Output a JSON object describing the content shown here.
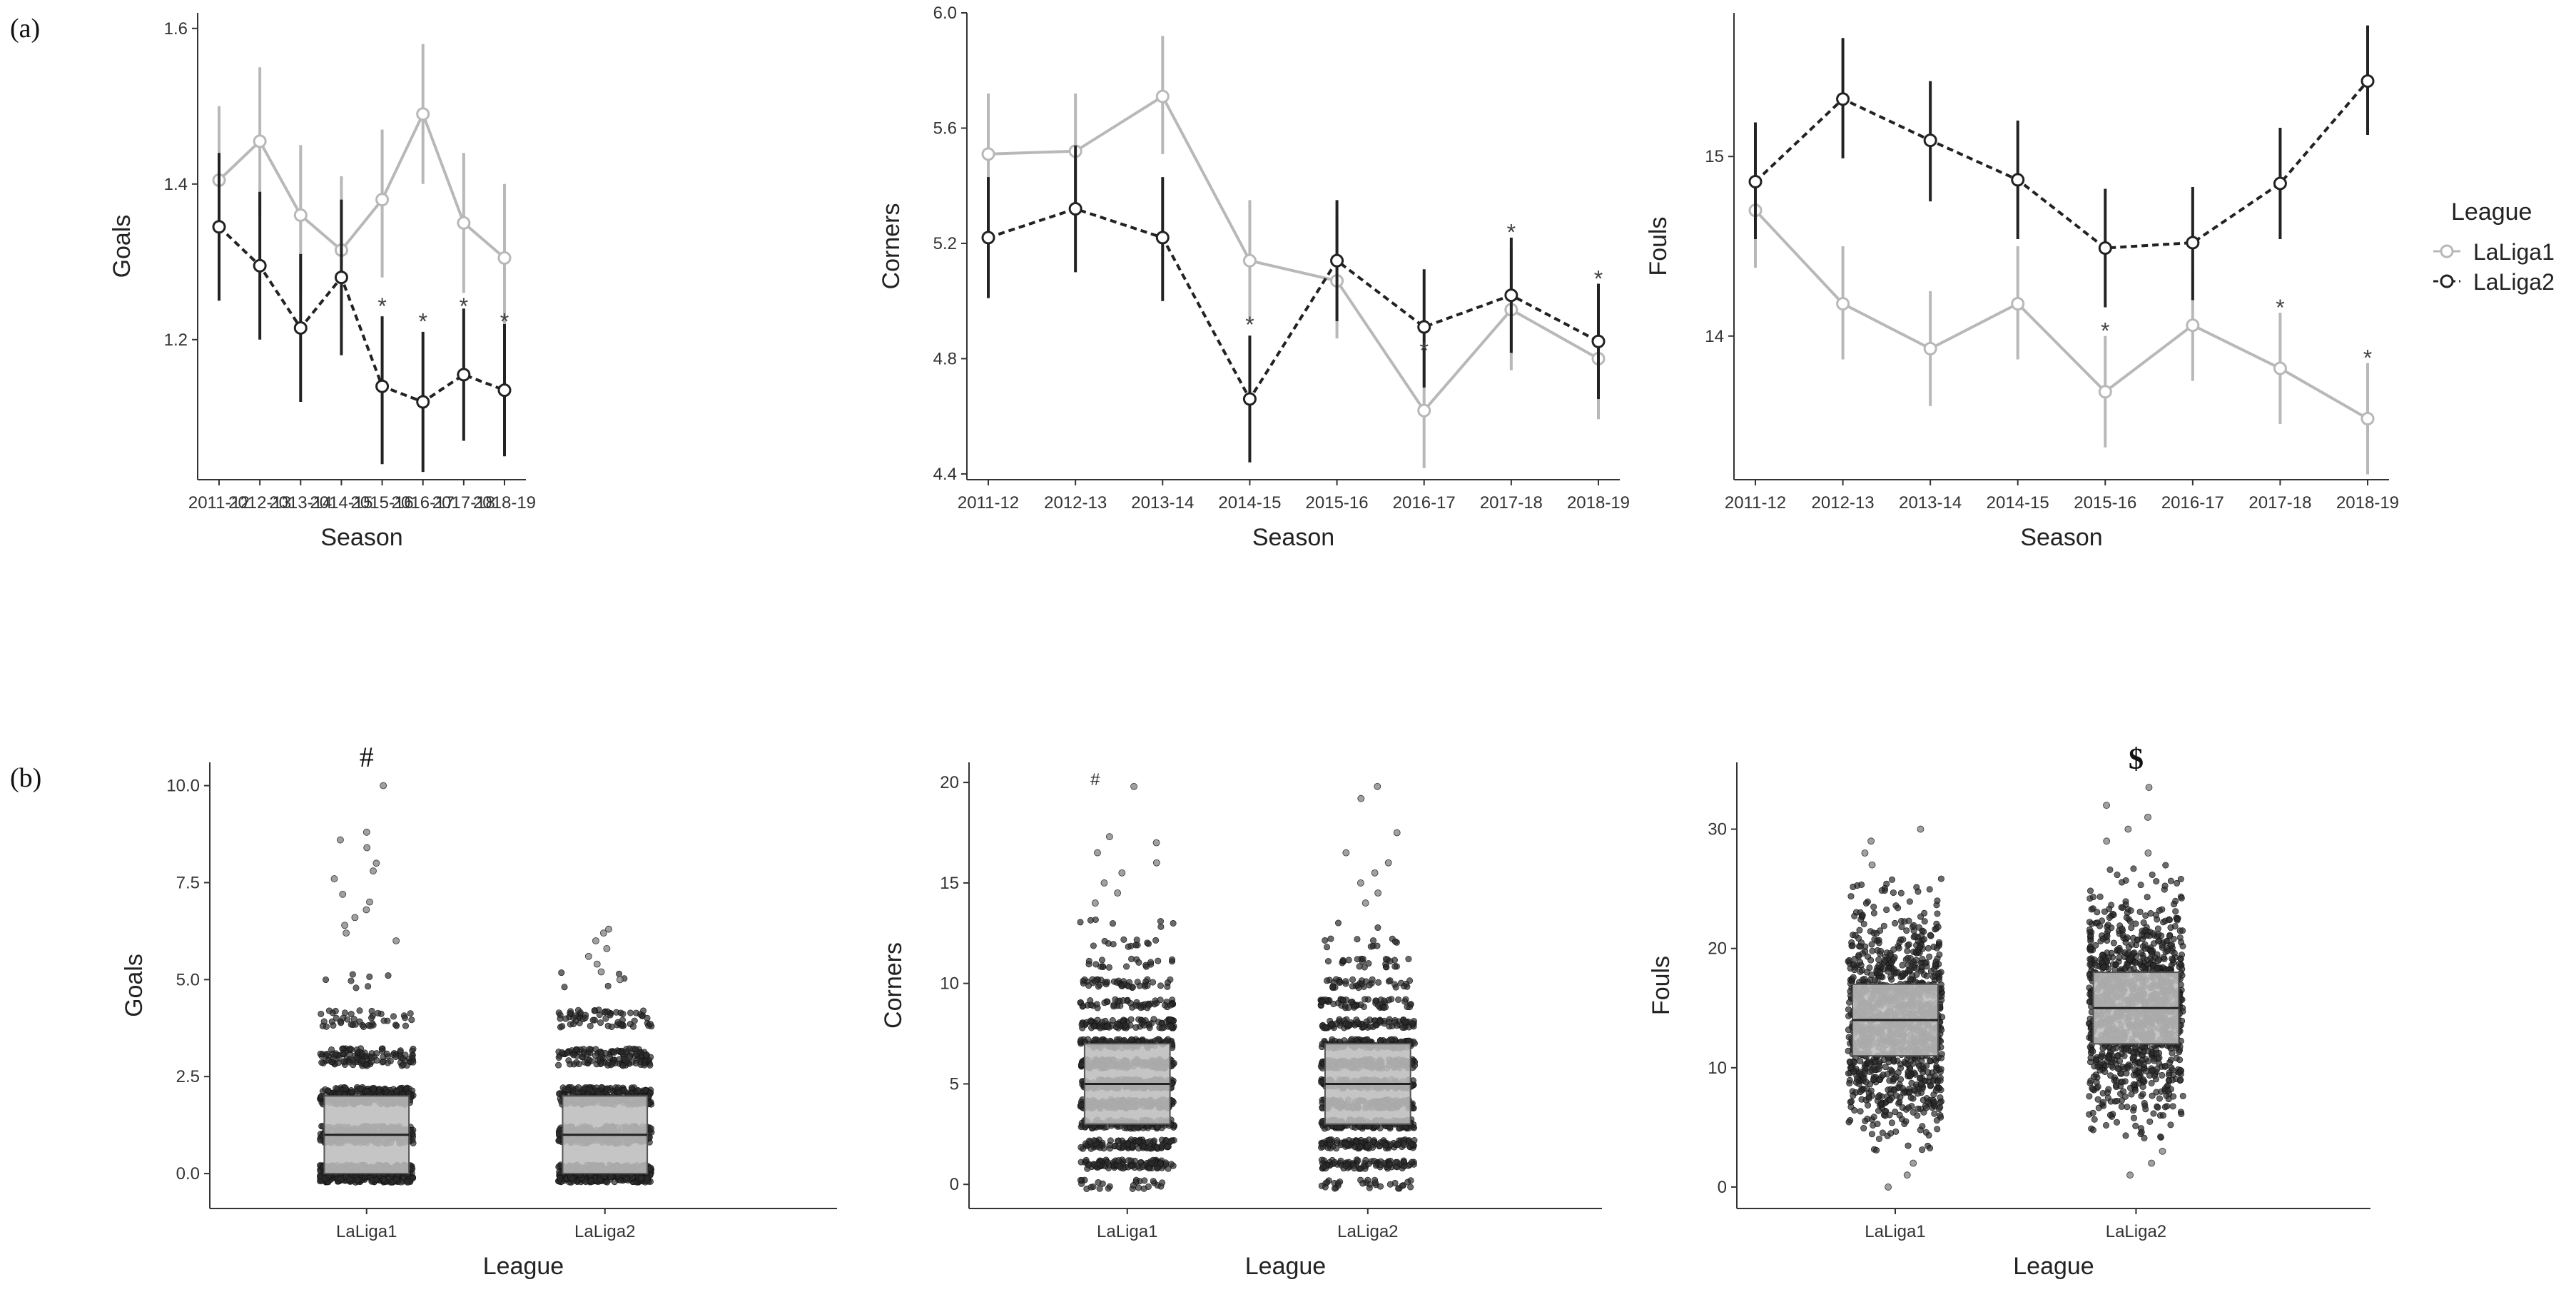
{
  "panel_labels": {
    "a": "(a)",
    "b": "(b)"
  },
  "colors": {
    "laliga1": "#b8b8b8",
    "laliga2": "#222222",
    "axis": "#333333",
    "box": "#bdbdbd",
    "dots": "#2b2b2b"
  },
  "legend": {
    "title": "League",
    "items": [
      "LaLiga1",
      "LaLiga2"
    ]
  },
  "chart_data": [
    {
      "id": "goals-season",
      "type": "line",
      "title": "",
      "xlabel": "Season",
      "ylabel": "Goals",
      "ylim": [
        1.02,
        1.62
      ],
      "yticks": [
        1.2,
        1.4,
        1.6
      ],
      "ytick_labels": [
        "1.2",
        "1.4",
        "1.6"
      ],
      "categories": [
        "2011-12",
        "2012-13",
        "2013-14",
        "2014-15",
        "2015-16",
        "2016-17",
        "2017-18",
        "2018-19"
      ],
      "series": [
        {
          "name": "LaLiga1",
          "values": [
            1.405,
            1.455,
            1.36,
            1.315,
            1.38,
            1.49,
            1.35,
            1.305
          ],
          "ci_low": [
            1.31,
            1.36,
            1.26,
            1.22,
            1.28,
            1.4,
            1.26,
            1.21
          ],
          "ci_high": [
            1.5,
            1.55,
            1.45,
            1.41,
            1.47,
            1.58,
            1.44,
            1.4
          ]
        },
        {
          "name": "LaLiga2",
          "values": [
            1.345,
            1.295,
            1.215,
            1.28,
            1.14,
            1.12,
            1.155,
            1.135
          ],
          "ci_low": [
            1.25,
            1.2,
            1.12,
            1.18,
            1.04,
            1.03,
            1.07,
            1.05
          ],
          "ci_high": [
            1.44,
            1.39,
            1.31,
            1.38,
            1.23,
            1.21,
            1.24,
            1.22
          ]
        }
      ],
      "annotations": [
        {
          "text": "*",
          "category": "2015-16",
          "y": 1.255
        },
        {
          "text": "*",
          "category": "2016-17",
          "y": 1.235
        },
        {
          "text": "*",
          "category": "2017-18",
          "y": 1.255
        },
        {
          "text": "*",
          "category": "2018-19",
          "y": 1.235
        }
      ]
    },
    {
      "id": "corners-season",
      "type": "line",
      "title": "",
      "xlabel": "Season",
      "ylabel": "Corners",
      "ylim": [
        4.38,
        6.0
      ],
      "yticks": [
        4.4,
        4.8,
        5.2,
        5.6,
        6.0
      ],
      "ytick_labels": [
        "4.4",
        "4.8",
        "5.2",
        "5.6",
        "6.0"
      ],
      "categories": [
        "2011-12",
        "2012-13",
        "2013-14",
        "2014-15",
        "2015-16",
        "2016-17",
        "2017-18",
        "2018-19"
      ],
      "series": [
        {
          "name": "LaLiga1",
          "values": [
            5.51,
            5.52,
            5.71,
            5.14,
            5.07,
            4.62,
            4.97,
            4.8
          ],
          "ci_low": [
            5.31,
            5.32,
            5.51,
            4.93,
            4.87,
            4.42,
            4.76,
            4.59
          ],
          "ci_high": [
            5.72,
            5.72,
            5.92,
            5.35,
            5.29,
            4.84,
            5.18,
            5.01
          ]
        },
        {
          "name": "LaLiga2",
          "values": [
            5.22,
            5.32,
            5.22,
            4.66,
            5.14,
            4.91,
            5.02,
            4.86
          ],
          "ci_low": [
            5.01,
            5.1,
            5.0,
            4.44,
            4.93,
            4.7,
            4.82,
            4.66
          ],
          "ci_high": [
            5.43,
            5.54,
            5.43,
            4.88,
            5.35,
            5.11,
            5.22,
            5.06
          ]
        }
      ],
      "annotations": [
        {
          "text": "*",
          "category": "2014-15",
          "y": 4.95
        },
        {
          "text": "*",
          "category": "2016-17",
          "y": 4.86
        },
        {
          "text": "*",
          "category": "2017-18",
          "y": 5.27
        },
        {
          "text": "*",
          "category": "2018-19",
          "y": 5.11
        }
      ]
    },
    {
      "id": "fouls-season",
      "type": "line",
      "title": "",
      "xlabel": "Season",
      "ylabel": "Fouls",
      "ylim": [
        13.2,
        15.8
      ],
      "yticks": [
        14,
        15
      ],
      "ytick_labels": [
        "14",
        "15"
      ],
      "categories": [
        "2011-12",
        "2012-13",
        "2013-14",
        "2014-15",
        "2015-16",
        "2016-17",
        "2017-18",
        "2018-19"
      ],
      "series": [
        {
          "name": "LaLiga1",
          "values": [
            14.7,
            14.18,
            13.93,
            14.18,
            13.69,
            14.06,
            13.82,
            13.54
          ],
          "ci_low": [
            14.38,
            13.87,
            13.61,
            13.87,
            13.38,
            13.75,
            13.51,
            13.23
          ],
          "ci_high": [
            15.02,
            14.5,
            14.25,
            14.5,
            14.0,
            14.37,
            14.13,
            13.85
          ]
        },
        {
          "name": "LaLiga2",
          "values": [
            14.86,
            15.32,
            15.09,
            14.87,
            14.49,
            14.52,
            14.85,
            15.42
          ],
          "ci_low": [
            14.54,
            14.99,
            14.75,
            14.54,
            14.16,
            14.2,
            14.54,
            15.12
          ],
          "ci_high": [
            15.19,
            15.66,
            15.42,
            15.2,
            14.82,
            14.83,
            15.16,
            15.73
          ]
        }
      ],
      "annotations": [
        {
          "text": "*",
          "category": "2015-16",
          "y": 14.08
        },
        {
          "text": "*",
          "category": "2017-18",
          "y": 14.21
        },
        {
          "text": "*",
          "category": "2018-19",
          "y": 13.93
        }
      ]
    },
    {
      "id": "goals-league",
      "type": "box",
      "xlabel": "League",
      "ylabel": "Goals",
      "ylim": [
        -0.9,
        10.6
      ],
      "yticks": [
        0,
        2.5,
        5,
        7.5,
        10
      ],
      "ytick_labels": [
        "0.0",
        "2.5",
        "5.0",
        "7.5",
        "10.0"
      ],
      "categories": [
        "LaLiga1",
        "LaLiga2"
      ],
      "boxes": [
        {
          "name": "LaLiga1",
          "q1": 0,
          "median": 1,
          "q3": 2,
          "min": 0,
          "max": 5.4,
          "outliers": [
            6,
            6.2,
            6.4,
            6.6,
            6.8,
            7.0,
            7.2,
            7.6,
            7.8,
            8.0,
            8.4,
            8.6,
            8.8,
            10.0
          ]
        },
        {
          "name": "LaLiga2",
          "q1": 0,
          "median": 1,
          "q3": 2,
          "min": 0,
          "max": 4.6,
          "outliers": [
            5.0,
            5.2,
            5.4,
            5.6,
            5.8,
            6.0,
            6.2,
            6.3
          ]
        }
      ],
      "annotations": [
        {
          "text": "#",
          "category": "LaLiga1"
        }
      ]
    },
    {
      "id": "corners-league",
      "type": "box",
      "xlabel": "League",
      "ylabel": "Corners",
      "ylim": [
        -1.2,
        21.0
      ],
      "yticks": [
        0,
        5,
        10,
        15,
        20
      ],
      "ytick_labels": [
        "0",
        "5",
        "10",
        "15",
        "20"
      ],
      "categories": [
        "LaLiga1",
        "LaLiga2"
      ],
      "boxes": [
        {
          "name": "LaLiga1",
          "q1": 3,
          "median": 5,
          "q3": 7,
          "min": 0,
          "max": 13,
          "outliers": [
            14,
            14.5,
            15,
            15.5,
            16,
            16.5,
            17,
            17.3,
            19.8
          ]
        },
        {
          "name": "LaLiga2",
          "q1": 3,
          "median": 5,
          "q3": 7,
          "min": 0,
          "max": 13,
          "outliers": [
            14,
            14.5,
            15,
            15.5,
            16,
            16.5,
            17.5,
            19.2,
            19.8
          ]
        }
      ],
      "annotations": [
        {
          "text": "#",
          "category": "LaLiga1"
        }
      ]
    },
    {
      "id": "fouls-league",
      "type": "box",
      "xlabel": "League",
      "ylabel": "Fouls",
      "ylim": [
        -1.8,
        35.6
      ],
      "yticks": [
        0,
        10,
        20,
        30
      ],
      "ytick_labels": [
        "0",
        "10",
        "20",
        "30"
      ],
      "categories": [
        "LaLiga1",
        "LaLiga2"
      ],
      "boxes": [
        {
          "name": "LaLiga1",
          "q1": 11,
          "median": 14,
          "q3": 17,
          "min": 3,
          "max": 26,
          "outliers": [
            0,
            1,
            2,
            27,
            28,
            29,
            30
          ]
        },
        {
          "name": "LaLiga2",
          "q1": 12,
          "median": 15,
          "q3": 18,
          "min": 4,
          "max": 27,
          "outliers": [
            1,
            2,
            3,
            28,
            29,
            30,
            31,
            32,
            33.5
          ]
        }
      ],
      "annotations": [
        {
          "text": "$",
          "category": "LaLiga2"
        }
      ]
    }
  ]
}
